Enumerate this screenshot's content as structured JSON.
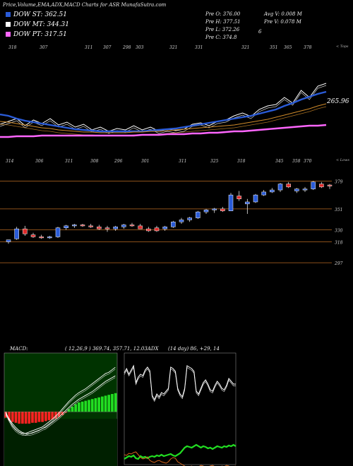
{
  "header": {
    "title": "Price,Volume,EMA,ADX,MACD Charts for ASR MunafaSutra.com"
  },
  "legend": [
    {
      "label": "DOW ST: 362.51",
      "color": "#2a5bd7"
    },
    {
      "label": "DOW MT: 344.31",
      "color": "#ffffff"
    },
    {
      "label": "DOW PT: 317.51",
      "color": "#ff66ff"
    }
  ],
  "stats": {
    "left": [
      "Pre  O: 376.00",
      "Pre  H: 377.51",
      "Pre  L: 372.26",
      "Pre  C: 374.8"
    ],
    "right": [
      "Avg V: 0.008  M",
      "Pre  V: 0.078  M",
      "",
      "6"
    ]
  },
  "notes": {
    "tops": "< Tops",
    "lows": "< Lows"
  },
  "chart_data": [
    {
      "type": "line",
      "name": "ema_panel",
      "top_labels": [
        "318",
        "307",
        "311",
        "307",
        "298",
        "303",
        "321",
        "331",
        "321",
        "351",
        "365",
        "378"
      ],
      "low_labels": [
        "314",
        "306",
        "311",
        "308",
        "296",
        "301",
        "311",
        "325",
        "318",
        "345",
        "358",
        "370"
      ],
      "last_value_label": "265.96",
      "series": [
        {
          "color": "#ffffff",
          "values": [
            176,
            172,
            168,
            178,
            170,
            175,
            168,
            177,
            173,
            180,
            176,
            184,
            180,
            186,
            182,
            184,
            178,
            184,
            180,
            186,
            183,
            185,
            183,
            176,
            174,
            178,
            172,
            170,
            164,
            160,
            165,
            155,
            150,
            148,
            138,
            146,
            128,
            138,
            122,
            118
          ]
        },
        {
          "color": "#2a5bd7",
          "values": [
            162,
            164,
            168,
            171,
            173,
            175,
            177,
            179,
            181,
            183,
            184,
            185,
            186,
            186,
            186,
            186,
            186,
            186,
            185,
            184,
            183,
            182,
            180,
            178,
            176,
            174,
            172,
            170,
            168,
            166,
            164,
            161,
            158,
            155,
            150,
            146,
            141,
            137,
            133,
            130
          ]
        },
        {
          "color": "#d08b2a",
          "values": [
            172,
            173,
            175,
            177,
            179,
            181,
            182,
            184,
            185,
            186,
            187,
            187,
            188,
            188,
            188,
            188,
            187,
            187,
            186,
            186,
            185,
            184,
            183,
            182,
            181,
            180,
            179,
            178,
            177,
            175,
            173,
            171,
            169,
            166,
            163,
            160,
            157,
            154,
            150,
            147
          ]
        },
        {
          "color": "#ff66ff",
          "values": [
            194,
            194,
            193,
            193,
            193,
            192,
            192,
            192,
            192,
            192,
            192,
            192,
            192,
            192,
            192,
            192,
            192,
            191,
            191,
            191,
            190,
            190,
            190,
            189,
            189,
            188,
            188,
            187,
            186,
            186,
            185,
            184,
            183,
            182,
            181,
            180,
            179,
            178,
            178,
            177
          ]
        }
      ]
    },
    {
      "type": "candlestick",
      "name": "price_panel",
      "ylim": [
        290,
        392
      ],
      "gridlines": [
        379,
        351,
        330,
        318,
        297
      ],
      "candles": [
        {
          "o": 318,
          "h": 320,
          "l": 316,
          "c": 320,
          "up": true
        },
        {
          "o": 321,
          "h": 333,
          "l": 320,
          "c": 331,
          "up": true
        },
        {
          "o": 331,
          "h": 334,
          "l": 324,
          "c": 326,
          "up": false
        },
        {
          "o": 325,
          "h": 327,
          "l": 322,
          "c": 323,
          "up": false
        },
        {
          "o": 323,
          "h": 325,
          "l": 321,
          "c": 322,
          "up": false
        },
        {
          "o": 322,
          "h": 324,
          "l": 321,
          "c": 323,
          "up": true
        },
        {
          "o": 323,
          "h": 333,
          "l": 322,
          "c": 332,
          "up": true
        },
        {
          "o": 332,
          "h": 335,
          "l": 330,
          "c": 334,
          "up": true
        },
        {
          "o": 334,
          "h": 336,
          "l": 332,
          "c": 335,
          "up": true
        },
        {
          "o": 335,
          "h": 336,
          "l": 333,
          "c": 334,
          "up": false
        },
        {
          "o": 334,
          "h": 336,
          "l": 332,
          "c": 333,
          "up": false
        },
        {
          "o": 333,
          "h": 335,
          "l": 330,
          "c": 331,
          "up": false
        },
        {
          "o": 331,
          "h": 334,
          "l": 328,
          "c": 332,
          "up": false
        },
        {
          "o": 331,
          "h": 334,
          "l": 329,
          "c": 333,
          "up": true
        },
        {
          "o": 333,
          "h": 336,
          "l": 331,
          "c": 335,
          "up": true
        },
        {
          "o": 335,
          "h": 337,
          "l": 333,
          "c": 334,
          "up": false
        },
        {
          "o": 334,
          "h": 336,
          "l": 331,
          "c": 331,
          "up": false
        },
        {
          "o": 331,
          "h": 333,
          "l": 328,
          "c": 329,
          "up": false
        },
        {
          "o": 329,
          "h": 334,
          "l": 328,
          "c": 332,
          "up": false
        },
        {
          "o": 331,
          "h": 334,
          "l": 329,
          "c": 333,
          "up": true
        },
        {
          "o": 333,
          "h": 339,
          "l": 332,
          "c": 338,
          "up": true
        },
        {
          "o": 338,
          "h": 342,
          "l": 336,
          "c": 340,
          "up": true
        },
        {
          "o": 340,
          "h": 343,
          "l": 338,
          "c": 342,
          "up": true
        },
        {
          "o": 342,
          "h": 349,
          "l": 341,
          "c": 348,
          "up": true
        },
        {
          "o": 348,
          "h": 351,
          "l": 346,
          "c": 350,
          "up": true
        },
        {
          "o": 350,
          "h": 352,
          "l": 347,
          "c": 351,
          "up": true
        },
        {
          "o": 351,
          "h": 353,
          "l": 348,
          "c": 349,
          "up": false
        },
        {
          "o": 349,
          "h": 367,
          "l": 349,
          "c": 365,
          "up": true
        },
        {
          "o": 364,
          "h": 369,
          "l": 359,
          "c": 361,
          "up": false
        },
        {
          "o": 356,
          "h": 361,
          "l": 346,
          "c": 358,
          "up": true
        },
        {
          "o": 358,
          "h": 366,
          "l": 357,
          "c": 365,
          "up": true
        },
        {
          "o": 365,
          "h": 370,
          "l": 364,
          "c": 368,
          "up": true
        },
        {
          "o": 368,
          "h": 372,
          "l": 367,
          "c": 370,
          "up": true
        },
        {
          "o": 370,
          "h": 377,
          "l": 368,
          "c": 376,
          "up": true
        },
        {
          "o": 376,
          "h": 378,
          "l": 372,
          "c": 373,
          "up": false
        },
        {
          "o": 369,
          "h": 372,
          "l": 367,
          "c": 371,
          "up": true
        },
        {
          "o": 370,
          "h": 373,
          "l": 368,
          "c": 371,
          "up": true
        },
        {
          "o": 371,
          "h": 379,
          "l": 370,
          "c": 378,
          "up": true
        },
        {
          "o": 376,
          "h": 378,
          "l": 372,
          "c": 373,
          "up": false
        },
        {
          "o": 375,
          "h": 376,
          "l": 371,
          "c": 374,
          "up": false
        }
      ]
    },
    {
      "type": "bar",
      "name": "macd_panel",
      "title": "MACD:",
      "value_label": "( 12,26,9 ) 369.74,  357.71,  12.03",
      "histogram": [
        -7,
        -10,
        -12,
        -13,
        -14,
        -14,
        -14,
        -14,
        -13,
        -13,
        -12,
        -12,
        -11,
        -10,
        -9,
        -8,
        -6,
        -4,
        -1,
        3,
        6,
        9,
        11,
        12,
        13,
        14,
        15,
        16,
        17,
        18,
        19,
        20,
        21,
        22
      ],
      "macd": [
        0,
        -12,
        -22,
        -28,
        -32,
        -34,
        -34,
        -32,
        -30,
        -28,
        -26,
        -24,
        -20,
        -16,
        -12,
        -7,
        -2,
        4,
        10,
        16,
        21,
        26,
        30,
        33,
        36,
        40,
        44,
        48,
        52,
        56,
        60,
        62,
        66,
        70
      ],
      "signal": [
        2,
        -6,
        -14,
        -20,
        -25,
        -28,
        -30,
        -30,
        -29,
        -27,
        -25,
        -22,
        -20,
        -16,
        -12,
        -8,
        -4,
        1,
        6,
        11,
        16,
        20,
        24,
        27,
        30,
        33,
        36,
        40,
        44,
        48,
        52,
        55,
        58,
        61
      ]
    },
    {
      "type": "line",
      "name": "adx_panel",
      "title": "ADX",
      "value_label": "(14 day) 86,  +29,  14",
      "series": [
        {
          "color": "#ffffff",
          "values": [
            52,
            58,
            50,
            56,
            62,
            38,
            46,
            50,
            48,
            56,
            60,
            55,
            20,
            14,
            22,
            18,
            24,
            22,
            26,
            30,
            60,
            58,
            54,
            30,
            22,
            18,
            30,
            62,
            60,
            58,
            54,
            26,
            22,
            30,
            38,
            42,
            36,
            28,
            26,
            34,
            40,
            36,
            30,
            28,
            34,
            44,
            40,
            36,
            36
          ]
        },
        {
          "color": "#22dd22",
          "values": [
            40,
            42,
            44,
            43,
            45,
            41,
            40,
            44,
            42,
            43,
            41,
            43,
            44,
            43,
            45,
            44,
            46,
            44,
            45,
            46,
            47,
            45,
            44,
            46,
            48,
            52,
            56,
            58,
            57,
            56,
            58,
            60,
            58,
            56,
            58,
            57,
            55,
            56,
            54,
            56,
            58,
            57,
            56,
            58,
            57,
            59,
            58,
            60,
            58
          ]
        },
        {
          "color": "#d4651c",
          "values": [
            46,
            45,
            48,
            47,
            49,
            50,
            46,
            42,
            40,
            41,
            43,
            38,
            36,
            35,
            37,
            38,
            36,
            35,
            34,
            36,
            40,
            42,
            41,
            36,
            34,
            32,
            30,
            28,
            29,
            30,
            28,
            27,
            29,
            31,
            30,
            28,
            29,
            30,
            31,
            29,
            27,
            28,
            30,
            29,
            31,
            30,
            28,
            29,
            30
          ]
        }
      ]
    }
  ]
}
